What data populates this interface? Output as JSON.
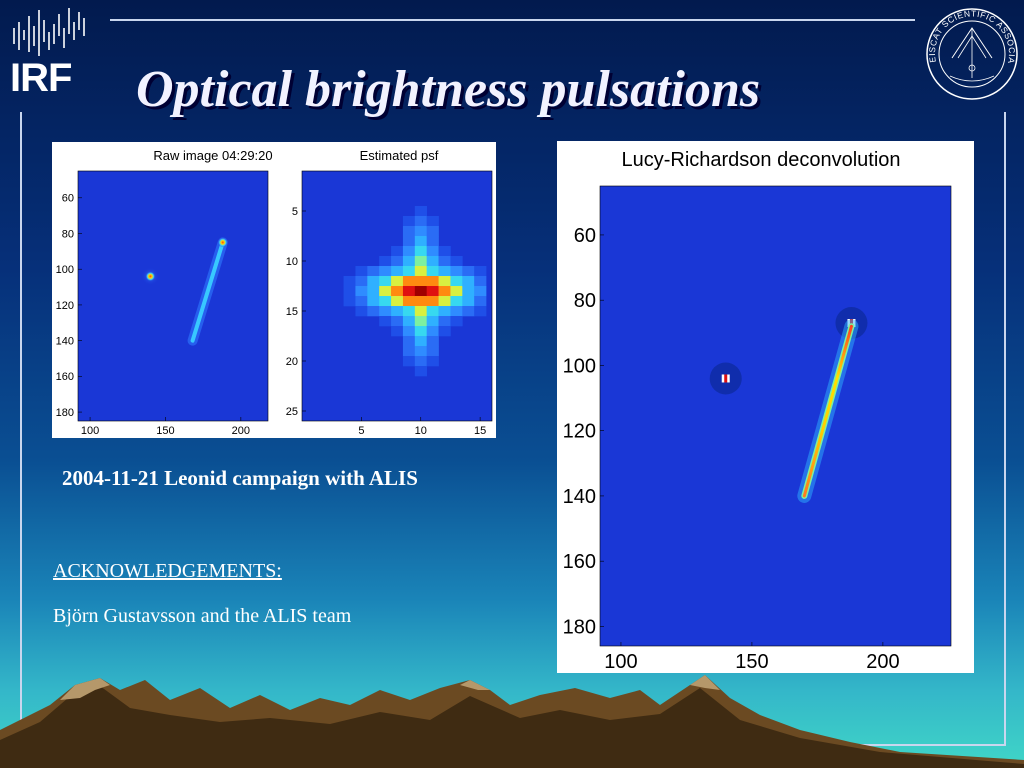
{
  "slide": {
    "title": "Optical brightness pulsations",
    "logo_text": "IRF",
    "seal_text": "EISCAT SCIENTIFIC ASSOCIATION",
    "caption": "2004-11-21 Leonid campaign with ALIS",
    "acknowledgements_heading": "ACKNOWLEDGEMENTS:",
    "acknowledgements_body": "Björn Gustavsson and the ALIS team"
  },
  "chart_data": [
    {
      "type": "heatmap",
      "title": "Raw image 04:29:20",
      "x_ticks": [
        "100",
        "150",
        "200"
      ],
      "y_ticks": [
        "60",
        "80",
        "100",
        "120",
        "140",
        "160",
        "180"
      ],
      "xlim": [
        92,
        218
      ],
      "ylim": [
        45,
        185
      ],
      "point_source": {
        "x": 140,
        "y": 104
      },
      "streak": {
        "x_start": 188,
        "y_start": 85,
        "x_end": 168,
        "y_end": 140
      }
    },
    {
      "type": "heatmap",
      "title": "Estimated psf",
      "x_ticks": [
        "5",
        "10",
        "15"
      ],
      "y_ticks": [
        "5",
        "10",
        "15",
        "20",
        "25"
      ],
      "xlim": [
        0,
        16
      ],
      "ylim": [
        1,
        26
      ],
      "peak": {
        "x": 10,
        "y": 13
      }
    },
    {
      "type": "heatmap",
      "title": "Lucy-Richardson deconvolution",
      "x_ticks": [
        "100",
        "150",
        "200"
      ],
      "y_ticks": [
        "60",
        "80",
        "100",
        "120",
        "140",
        "160",
        "180"
      ],
      "xlim": [
        92,
        226
      ],
      "ylim": [
        45,
        186
      ],
      "point_sources": [
        {
          "x": 140,
          "y": 104
        },
        {
          "x": 188,
          "y": 87
        }
      ],
      "streak": {
        "x_start": 188,
        "y_start": 88,
        "x_end": 170,
        "y_end": 140
      }
    }
  ],
  "colors": {
    "map_background": "#1a37d6",
    "title_color": "#f2f2ff",
    "line_color": "#c9d6ee"
  }
}
